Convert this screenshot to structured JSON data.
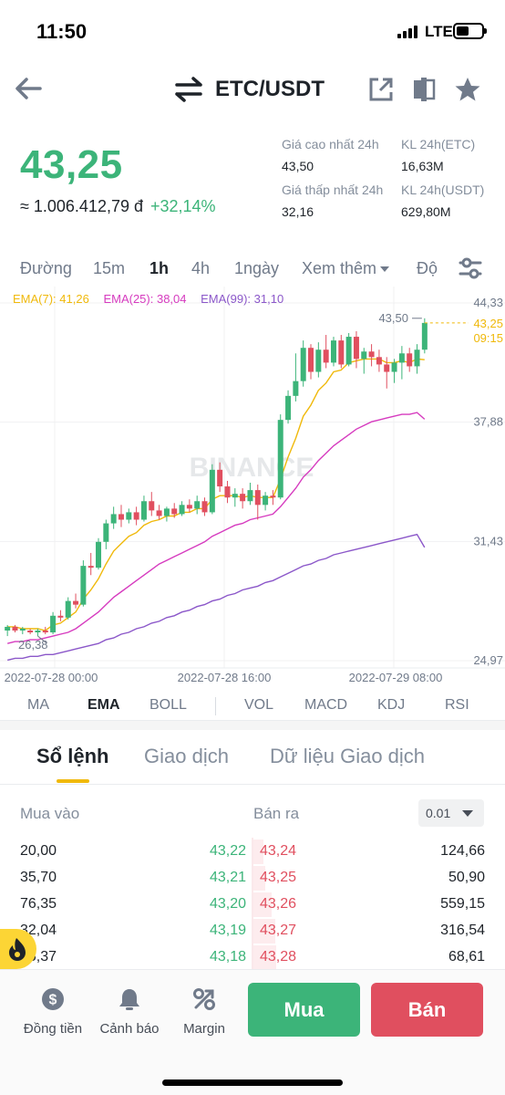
{
  "status_bar": {
    "time": "11:50",
    "network": "LTE"
  },
  "header": {
    "pair": "ETC/USDT"
  },
  "price": {
    "last": "43,25",
    "fiat": "≈ 1.006.412,79 đ",
    "change_pct": "+32,14%"
  },
  "stats": {
    "high_label": "Giá cao nhất 24h",
    "high_value": "43,50",
    "vol_base_label": "KL 24h(ETC)",
    "vol_base_value": "16,63M",
    "low_label": "Giá thấp nhất 24h",
    "low_value": "32,16",
    "vol_quote_label": "KL 24h(USDT)",
    "vol_quote_value": "629,80M"
  },
  "intervals": {
    "line": "Đường",
    "m15": "15m",
    "h1": "1h",
    "h4": "4h",
    "d1": "1ngày",
    "more": "Xem thêm",
    "depth": "Độ"
  },
  "chart_data": {
    "type": "candlestick",
    "ema_legend": {
      "ema7": "EMA(7): 41,26",
      "ema25": "EMA(25): 38,04",
      "ema99": "EMA(99): 31,10"
    },
    "y_ticks": [
      "44,33",
      "37,88",
      "31,43",
      "24,97"
    ],
    "ylim": [
      24.97,
      44.33
    ],
    "x_ticks": [
      "2022-07-28 00:00",
      "2022-07-28 16:00",
      "2022-07-29 08:00"
    ],
    "high_marker": "43,50",
    "low_marker": "26,38",
    "last_price_tag": "43,25",
    "countdown_tag": "09:15",
    "watermark": "BINANCE",
    "colors": {
      "up": "#3cb479",
      "down": "#e04f5f",
      "ema7": "#f0b90b",
      "ema25": "#d63bbf",
      "ema99": "#8b57c9"
    },
    "candles": [
      [
        26.6,
        26.9,
        26.3,
        26.8
      ],
      [
        26.8,
        26.9,
        26.5,
        26.6
      ],
      [
        26.6,
        26.8,
        26.4,
        26.7
      ],
      [
        26.6,
        26.7,
        26.4,
        26.5
      ],
      [
        26.5,
        26.7,
        26.3,
        26.6
      ],
      [
        26.6,
        26.8,
        26.4,
        26.5
      ],
      [
        26.5,
        27.6,
        26.4,
        27.4
      ],
      [
        27.4,
        27.7,
        27.1,
        27.3
      ],
      [
        27.3,
        28.4,
        27.2,
        28.2
      ],
      [
        28.2,
        28.6,
        27.8,
        28.0
      ],
      [
        28.0,
        30.4,
        27.9,
        30.1
      ],
      [
        30.1,
        30.8,
        29.6,
        30.0
      ],
      [
        30.0,
        31.6,
        29.9,
        31.4
      ],
      [
        31.4,
        32.6,
        31.0,
        32.4
      ],
      [
        32.4,
        33.3,
        32.1,
        32.9
      ],
      [
        32.9,
        33.4,
        32.2,
        32.6
      ],
      [
        32.6,
        33.2,
        32.4,
        33.0
      ],
      [
        33.0,
        33.3,
        32.3,
        32.6
      ],
      [
        32.6,
        33.9,
        32.5,
        33.6
      ],
      [
        33.6,
        34.1,
        32.8,
        33.1
      ],
      [
        33.1,
        33.4,
        32.6,
        32.8
      ],
      [
        32.8,
        33.3,
        32.5,
        33.2
      ],
      [
        33.2,
        33.5,
        32.7,
        32.9
      ],
      [
        32.9,
        33.6,
        32.8,
        33.4
      ],
      [
        33.4,
        33.7,
        33.0,
        33.2
      ],
      [
        33.2,
        33.9,
        32.9,
        33.6
      ],
      [
        33.6,
        33.8,
        32.8,
        33.0
      ],
      [
        33.0,
        35.6,
        32.9,
        35.3
      ],
      [
        35.3,
        35.7,
        34.1,
        34.4
      ],
      [
        34.4,
        34.7,
        33.5,
        33.8
      ],
      [
        33.8,
        34.3,
        33.3,
        34.0
      ],
      [
        34.0,
        34.3,
        33.2,
        33.6
      ],
      [
        33.6,
        34.6,
        33.4,
        34.2
      ],
      [
        34.2,
        34.5,
        32.6,
        33.4
      ],
      [
        33.4,
        34.1,
        33.1,
        33.9
      ],
      [
        33.9,
        34.2,
        33.4,
        33.8
      ],
      [
        33.8,
        38.3,
        33.7,
        38.0
      ],
      [
        38.0,
        39.6,
        37.8,
        39.3
      ],
      [
        39.3,
        41.6,
        39.0,
        40.1
      ],
      [
        40.1,
        42.3,
        39.8,
        41.9
      ],
      [
        41.9,
        42.1,
        40.2,
        40.6
      ],
      [
        40.6,
        42.2,
        40.3,
        41.8
      ],
      [
        41.8,
        42.6,
        40.8,
        41.1
      ],
      [
        41.1,
        42.5,
        40.9,
        42.3
      ],
      [
        42.3,
        42.6,
        40.8,
        41.0
      ],
      [
        41.0,
        42.7,
        40.9,
        42.5
      ],
      [
        42.5,
        42.8,
        40.8,
        41.3
      ],
      [
        41.3,
        41.9,
        40.5,
        41.7
      ],
      [
        41.7,
        42.1,
        40.9,
        41.4
      ],
      [
        41.4,
        41.8,
        40.6,
        41.0
      ],
      [
        41.0,
        41.4,
        39.7,
        40.6
      ],
      [
        40.6,
        41.3,
        40.0,
        41.1
      ],
      [
        41.1,
        42.0,
        40.2,
        41.6
      ],
      [
        41.6,
        41.9,
        40.6,
        40.9
      ],
      [
        40.9,
        42.1,
        40.5,
        41.8
      ],
      [
        41.8,
        43.5,
        41.6,
        43.25
      ]
    ],
    "ema7": [
      26.8,
      26.8,
      26.7,
      26.7,
      26.7,
      26.6,
      26.9,
      27.0,
      27.3,
      27.6,
      28.3,
      28.8,
      29.4,
      30.2,
      30.9,
      31.3,
      31.7,
      31.9,
      32.3,
      32.5,
      32.6,
      32.8,
      32.8,
      33.0,
      33.0,
      33.2,
      33.2,
      33.7,
      33.9,
      33.9,
      33.9,
      33.8,
      33.9,
      33.8,
      33.8,
      33.8,
      34.8,
      36.0,
      37.0,
      38.2,
      38.8,
      39.6,
      40.0,
      40.6,
      40.7,
      41.1,
      41.2,
      41.3,
      41.3,
      41.3,
      41.1,
      41.1,
      41.2,
      41.1,
      41.3,
      41.26
    ],
    "ema25": [
      25.9,
      26.0,
      26.0,
      26.1,
      26.1,
      26.2,
      26.3,
      26.4,
      26.5,
      26.7,
      27.0,
      27.3,
      27.6,
      28.0,
      28.4,
      28.7,
      29.0,
      29.3,
      29.6,
      29.9,
      30.2,
      30.4,
      30.6,
      30.8,
      31.0,
      31.2,
      31.4,
      31.7,
      31.9,
      32.1,
      32.3,
      32.4,
      32.6,
      32.7,
      32.8,
      32.9,
      33.3,
      33.8,
      34.3,
      34.9,
      35.3,
      35.8,
      36.2,
      36.6,
      36.9,
      37.2,
      37.5,
      37.7,
      37.9,
      38.0,
      38.1,
      38.2,
      38.3,
      38.3,
      38.4,
      38.04
    ],
    "ema99": [
      25.0,
      25.1,
      25.1,
      25.2,
      25.2,
      25.3,
      25.3,
      25.4,
      25.5,
      25.6,
      25.7,
      25.8,
      25.9,
      26.1,
      26.2,
      26.4,
      26.5,
      26.7,
      26.8,
      27.0,
      27.1,
      27.3,
      27.4,
      27.6,
      27.7,
      27.9,
      28.0,
      28.2,
      28.3,
      28.5,
      28.6,
      28.8,
      28.9,
      29.0,
      29.2,
      29.3,
      29.5,
      29.7,
      29.9,
      30.1,
      30.2,
      30.4,
      30.5,
      30.7,
      30.8,
      30.9,
      31.0,
      31.1,
      31.2,
      31.3,
      31.4,
      31.5,
      31.6,
      31.7,
      31.8,
      31.1
    ]
  },
  "indicators": [
    "MA",
    "EMA",
    "BOLL",
    "VOL",
    "MACD",
    "KDJ",
    "RSI"
  ],
  "orderbook_tabs": {
    "book": "Sổ lệnh",
    "trades": "Giao dịch",
    "data": "Dữ liệu Giao dịch"
  },
  "orderbook": {
    "buy_label": "Mua vào",
    "sell_label": "Bán ra",
    "precision": "0.01",
    "rows": [
      {
        "bid_qty": "20,00",
        "bid_price": "43,22",
        "ask_price": "43,24",
        "ask_qty": "124,66",
        "ask_depth": 0.18
      },
      {
        "bid_qty": "35,70",
        "bid_price": "43,21",
        "ask_price": "43,25",
        "ask_qty": "50,90",
        "ask_depth": 0.22
      },
      {
        "bid_qty": "76,35",
        "bid_price": "43,20",
        "ask_price": "43,26",
        "ask_qty": "559,15",
        "ask_depth": 0.34
      },
      {
        "bid_qty": "32,04",
        "bid_price": "43,19",
        "ask_price": "43,27",
        "ask_qty": "316,54",
        "ask_depth": 0.4
      },
      {
        "bid_qty": "46,37",
        "bid_price": "43,18",
        "ask_price": "43,28",
        "ask_qty": "68,61",
        "ask_depth": 0.42
      }
    ]
  },
  "bottom_nav": {
    "funding": "Đồng tiền",
    "alert": "Cảnh báo",
    "margin": "Margin",
    "buy": "Mua",
    "sell": "Bán"
  }
}
